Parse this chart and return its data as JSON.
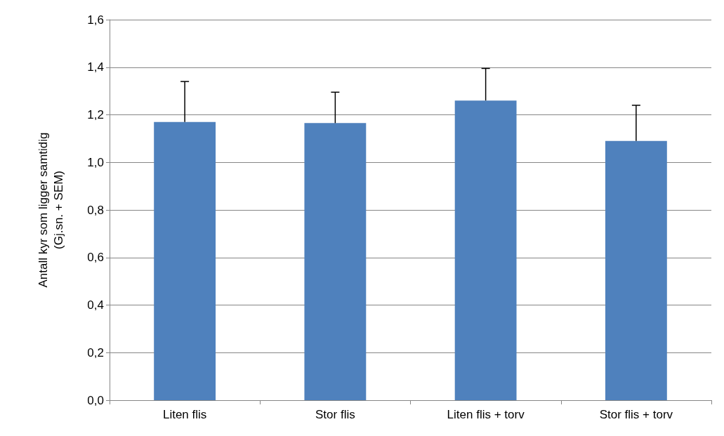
{
  "chart_data": {
    "type": "bar",
    "ylabel": "Antall kyr som ligger samtidig\n(Gj.sn. + SEM)",
    "categories": [
      "Liten flis",
      "Stor flis",
      "Liten flis + torv",
      "Stor flis + torv"
    ],
    "values": [
      1.17,
      1.165,
      1.26,
      1.09
    ],
    "errors": [
      [
        1.17,
        1.34
      ],
      [
        1.165,
        1.295
      ],
      [
        1.26,
        1.395
      ],
      [
        1.09,
        1.24
      ]
    ],
    "color": "#4f81bd",
    "ylim": [
      0,
      1.6
    ],
    "yticks": [
      {
        "value": 0,
        "label": "0,0"
      },
      {
        "value": 0.2,
        "label": "0,2"
      },
      {
        "value": 0.4,
        "label": "0,4"
      },
      {
        "value": 0.6,
        "label": "0,6"
      },
      {
        "value": 0.8,
        "label": "0,8"
      },
      {
        "value": 1.0,
        "label": "1,0"
      },
      {
        "value": 1.2,
        "label": "1,2"
      },
      {
        "value": 1.4,
        "label": "1,4"
      },
      {
        "value": 1.6,
        "label": "1,6"
      }
    ],
    "grid": "y"
  }
}
